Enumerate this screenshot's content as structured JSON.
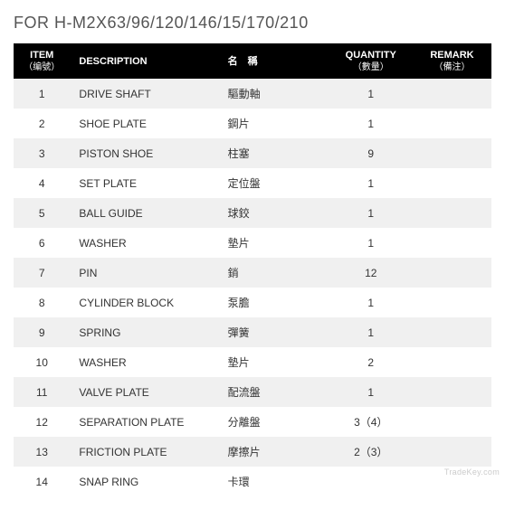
{
  "title": "FOR H-M2X63/96/120/146/15/170/210",
  "headers": {
    "item": {
      "en": "ITEM",
      "zh": "（编號）"
    },
    "desc": {
      "en": "DESCRIPTION",
      "zh": ""
    },
    "name": {
      "en": "名　稱",
      "zh": ""
    },
    "qty": {
      "en": "QUANTITY",
      "zh": "（數量）"
    },
    "rem": {
      "en": "REMARK",
      "zh": "（備注）"
    }
  },
  "rows": [
    {
      "item": "1",
      "desc": "DRIVE SHAFT",
      "name": "驅動軸",
      "qty": "1",
      "rem": ""
    },
    {
      "item": "2",
      "desc": "SHOE PLATE",
      "name": "鋼片",
      "qty": "1",
      "rem": ""
    },
    {
      "item": "3",
      "desc": "PISTON SHOE",
      "name": "柱塞",
      "qty": "9",
      "rem": ""
    },
    {
      "item": "4",
      "desc": "SET PLATE",
      "name": "定位盤",
      "qty": "1",
      "rem": ""
    },
    {
      "item": "5",
      "desc": "BALL GUIDE",
      "name": "球鉸",
      "qty": "1",
      "rem": ""
    },
    {
      "item": "6",
      "desc": "WASHER",
      "name": "墊片",
      "qty": "1",
      "rem": ""
    },
    {
      "item": "7",
      "desc": "PIN",
      "name": "銷",
      "qty": "12",
      "rem": ""
    },
    {
      "item": "8",
      "desc": "CYLINDER BLOCK",
      "name": "泵膽",
      "qty": "1",
      "rem": ""
    },
    {
      "item": "9",
      "desc": "SPRING",
      "name": "彈簧",
      "qty": "1",
      "rem": ""
    },
    {
      "item": "10",
      "desc": "WASHER",
      "name": "墊片",
      "qty": "2",
      "rem": ""
    },
    {
      "item": "11",
      "desc": "VALVE PLATE",
      "name": "配流盤",
      "qty": "1",
      "rem": ""
    },
    {
      "item": "12",
      "desc": "SEPARATION PLATE",
      "name": "分離盤",
      "qty": "3（4）",
      "rem": ""
    },
    {
      "item": "13",
      "desc": "FRICTION PLATE",
      "name": "摩擦片",
      "qty": "2（3）",
      "rem": ""
    },
    {
      "item": "14",
      "desc": "SNAP RING",
      "name": "卡環",
      "qty": "",
      "rem": ""
    }
  ],
  "watermark": "TradeKey.com",
  "colors": {
    "header_bg": "#000000",
    "header_fg": "#ffffff",
    "row_odd": "#f0f0f0",
    "row_even": "#ffffff",
    "title_fg": "#555555",
    "cell_fg": "#333333"
  },
  "font_sizes": {
    "title": 18,
    "header": 11,
    "header_sub": 10,
    "cell": 12,
    "watermark": 9
  }
}
